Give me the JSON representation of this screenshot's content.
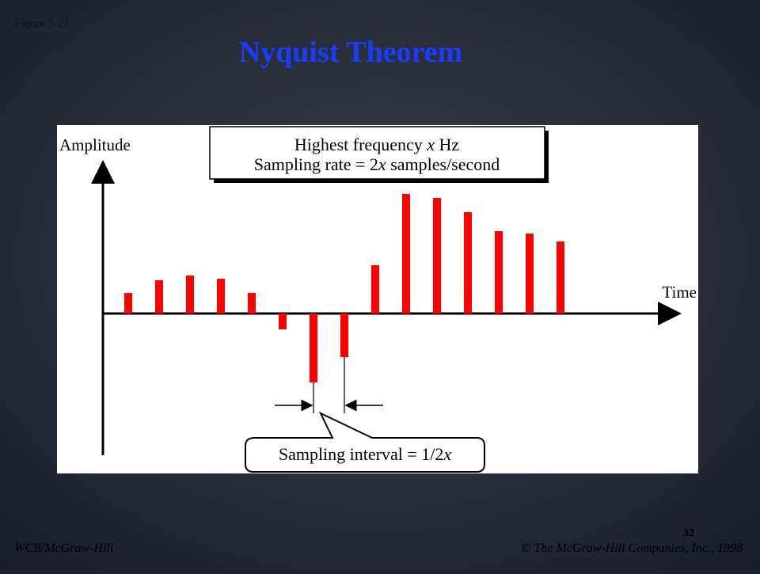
{
  "header": {
    "figure": "Figure 5-21",
    "title": "Nyquist Theorem"
  },
  "diagram": {
    "y_axis": "Amplitude",
    "x_axis": "Time",
    "box": {
      "line1": [
        "Highest frequency",
        "x",
        "Hz"
      ],
      "line2": [
        "Sampling rate =",
        "2",
        "x",
        "samples/second"
      ]
    },
    "callout": [
      "Sampling interval = 1/2",
      "x"
    ]
  },
  "footer": {
    "page": "32",
    "left": "WCB/McGraw-Hill",
    "right": "© The McGraw-Hill Companies, Inc., 1998"
  }
}
